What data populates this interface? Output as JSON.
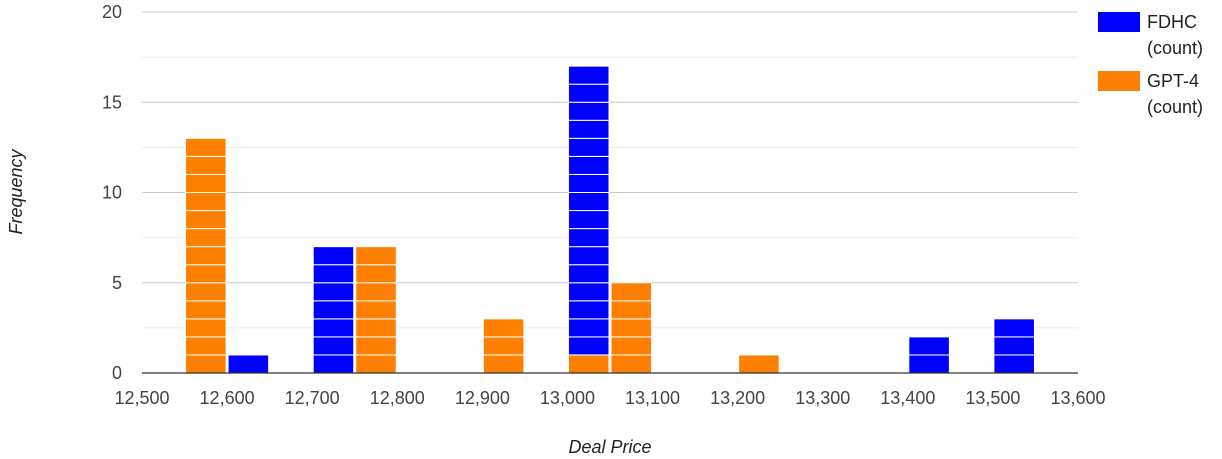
{
  "chart_data": {
    "type": "bar",
    "xlabel": "Deal Price",
    "ylabel": "Frequency",
    "xlim": [
      12500,
      13600
    ],
    "ylim": [
      0,
      20
    ],
    "x_ticks": [
      "12,500",
      "12,600",
      "12,700",
      "12,800",
      "12,900",
      "13,000",
      "13,100",
      "13,200",
      "13,300",
      "13,400",
      "13,500",
      "13,600"
    ],
    "y_ticks": [
      "0",
      "5",
      "10",
      "15",
      "20"
    ],
    "bin_starts": [
      12550,
      12600,
      12650,
      12700,
      12750,
      12800,
      12850,
      12900,
      12950,
      13000,
      13050,
      13100,
      13150,
      13200,
      13250,
      13300,
      13350,
      13400,
      13450,
      13500,
      13550
    ],
    "series": [
      {
        "name": "FDHC (count)",
        "color": "#0000FF",
        "values": [
          0,
          1,
          0,
          7,
          0,
          0,
          0,
          0,
          0,
          17,
          0,
          0,
          0,
          0,
          0,
          0,
          0,
          2,
          0,
          3,
          0
        ]
      },
      {
        "name": "GPT-4 (count)",
        "color": "#FF8000",
        "values": [
          13,
          0,
          0,
          0,
          7,
          0,
          0,
          3,
          0,
          1,
          5,
          0,
          0,
          1,
          0,
          0,
          0,
          0,
          0,
          0,
          0
        ]
      }
    ],
    "grid": true,
    "legend_position": "top-right"
  }
}
